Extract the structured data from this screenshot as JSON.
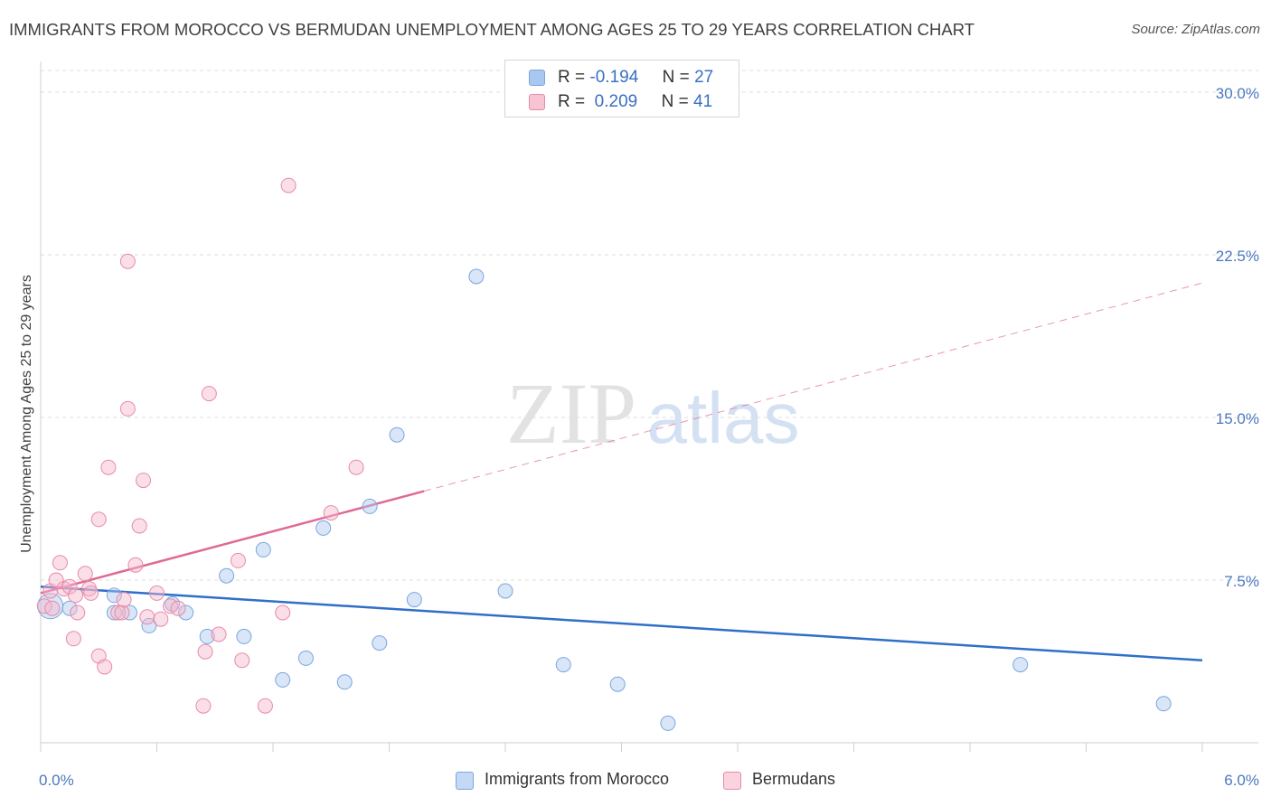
{
  "header": {
    "title": "IMMIGRANTS FROM MOROCCO VS BERMUDAN UNEMPLOYMENT AMONG AGES 25 TO 29 YEARS CORRELATION CHART",
    "source": "Source: ZipAtlas.com"
  },
  "watermark": {
    "zip": "ZIP",
    "atlas": "atlas"
  },
  "legend": {
    "rows": [
      {
        "r_label": "R =",
        "r_value": "-0.194",
        "n_label": "N =",
        "n_value": "27",
        "color": "#a9c8f0"
      },
      {
        "r_label": "R =",
        "r_value": "0.209",
        "n_label": "N =",
        "n_value": "41",
        "color": "#f6b8cb"
      }
    ]
  },
  "bottom_legend": [
    {
      "label": "Immigrants from Morocco",
      "color": "#a9c8f0"
    },
    {
      "label": "Bermudans",
      "color": "#f6b8cb"
    }
  ],
  "chart_data": {
    "type": "scatter",
    "title": "IMMIGRANTS FROM MOROCCO VS BERMUDAN UNEMPLOYMENT AMONG AGES 25 TO 29 YEARS CORRELATION CHART",
    "xlabel": "",
    "ylabel": "Unemployment Among Ages 25 to 29 years",
    "xlim": [
      0,
      6
    ],
    "ylim": [
      0,
      31
    ],
    "x_tick_labels": [
      {
        "value": 0,
        "label": "0.0%"
      },
      {
        "value": 6,
        "label": "6.0%"
      }
    ],
    "y_ticks": [
      {
        "value": 7.5,
        "label": "7.5%"
      },
      {
        "value": 15,
        "label": "15.0%"
      },
      {
        "value": 22.5,
        "label": "22.5%"
      },
      {
        "value": 30,
        "label": "30.0%"
      }
    ],
    "grid": true,
    "legend_position": "top-center",
    "series": [
      {
        "name": "Immigrants from Morocco",
        "color": "#a9c8f0",
        "stroke": "#7aa6de",
        "line_color": "#2f6fc9",
        "trend": {
          "x": [
            0,
            6
          ],
          "y": [
            7.2,
            3.8
          ]
        },
        "points": [
          {
            "x": 0.05,
            "y": 6.3,
            "big": true
          },
          {
            "x": 0.15,
            "y": 6.2
          },
          {
            "x": 0.38,
            "y": 6.0
          },
          {
            "x": 0.46,
            "y": 6.0
          },
          {
            "x": 0.56,
            "y": 5.4
          },
          {
            "x": 0.68,
            "y": 6.4
          },
          {
            "x": 0.75,
            "y": 6.0
          },
          {
            "x": 0.86,
            "y": 4.9
          },
          {
            "x": 0.96,
            "y": 7.7
          },
          {
            "x": 1.05,
            "y": 4.9
          },
          {
            "x": 1.15,
            "y": 8.9
          },
          {
            "x": 1.25,
            "y": 2.9
          },
          {
            "x": 1.37,
            "y": 3.9
          },
          {
            "x": 1.46,
            "y": 9.9
          },
          {
            "x": 1.57,
            "y": 2.8
          },
          {
            "x": 1.7,
            "y": 10.9
          },
          {
            "x": 1.75,
            "y": 4.6
          },
          {
            "x": 1.84,
            "y": 14.2
          },
          {
            "x": 1.93,
            "y": 6.6
          },
          {
            "x": 2.25,
            "y": 21.5
          },
          {
            "x": 2.4,
            "y": 7.0
          },
          {
            "x": 2.7,
            "y": 3.6
          },
          {
            "x": 2.98,
            "y": 2.7
          },
          {
            "x": 3.24,
            "y": 0.9
          },
          {
            "x": 5.06,
            "y": 3.6
          },
          {
            "x": 5.8,
            "y": 1.8
          },
          {
            "x": 0.38,
            "y": 6.8
          }
        ]
      },
      {
        "name": "Bermudans",
        "color": "#f6b8cb",
        "stroke": "#e88aa8",
        "line_color": "#e06a95",
        "trend": {
          "x": [
            0,
            1.98
          ],
          "y": [
            6.9,
            11.6
          ]
        },
        "trend_dashed": {
          "x": [
            1.98,
            6
          ],
          "y": [
            11.6,
            21.2
          ]
        },
        "points": [
          {
            "x": 0.02,
            "y": 6.3
          },
          {
            "x": 0.05,
            "y": 7.0
          },
          {
            "x": 0.08,
            "y": 7.5
          },
          {
            "x": 0.1,
            "y": 8.3
          },
          {
            "x": 0.12,
            "y": 7.1
          },
          {
            "x": 0.15,
            "y": 7.2
          },
          {
            "x": 0.18,
            "y": 6.8
          },
          {
            "x": 0.17,
            "y": 4.8
          },
          {
            "x": 0.19,
            "y": 6.0
          },
          {
            "x": 0.23,
            "y": 7.8
          },
          {
            "x": 0.25,
            "y": 7.1
          },
          {
            "x": 0.26,
            "y": 6.9
          },
          {
            "x": 0.3,
            "y": 4.0
          },
          {
            "x": 0.3,
            "y": 10.3
          },
          {
            "x": 0.33,
            "y": 3.5
          },
          {
            "x": 0.35,
            "y": 12.7
          },
          {
            "x": 0.4,
            "y": 6.0
          },
          {
            "x": 0.42,
            "y": 6.0
          },
          {
            "x": 0.43,
            "y": 6.6
          },
          {
            "x": 0.45,
            "y": 15.4
          },
          {
            "x": 0.45,
            "y": 22.2
          },
          {
            "x": 0.49,
            "y": 8.2
          },
          {
            "x": 0.51,
            "y": 10.0
          },
          {
            "x": 0.53,
            "y": 12.1
          },
          {
            "x": 0.55,
            "y": 5.8
          },
          {
            "x": 0.6,
            "y": 6.9
          },
          {
            "x": 0.62,
            "y": 5.7
          },
          {
            "x": 0.67,
            "y": 6.3
          },
          {
            "x": 0.71,
            "y": 6.2
          },
          {
            "x": 0.84,
            "y": 1.7
          },
          {
            "x": 0.85,
            "y": 4.2
          },
          {
            "x": 0.87,
            "y": 16.1
          },
          {
            "x": 0.92,
            "y": 5.0
          },
          {
            "x": 1.02,
            "y": 8.4
          },
          {
            "x": 1.04,
            "y": 3.8
          },
          {
            "x": 1.16,
            "y": 1.7
          },
          {
            "x": 1.25,
            "y": 6.0
          },
          {
            "x": 1.28,
            "y": 25.7
          },
          {
            "x": 1.5,
            "y": 10.6
          },
          {
            "x": 1.63,
            "y": 12.7
          },
          {
            "x": 0.06,
            "y": 6.2
          }
        ]
      }
    ]
  }
}
